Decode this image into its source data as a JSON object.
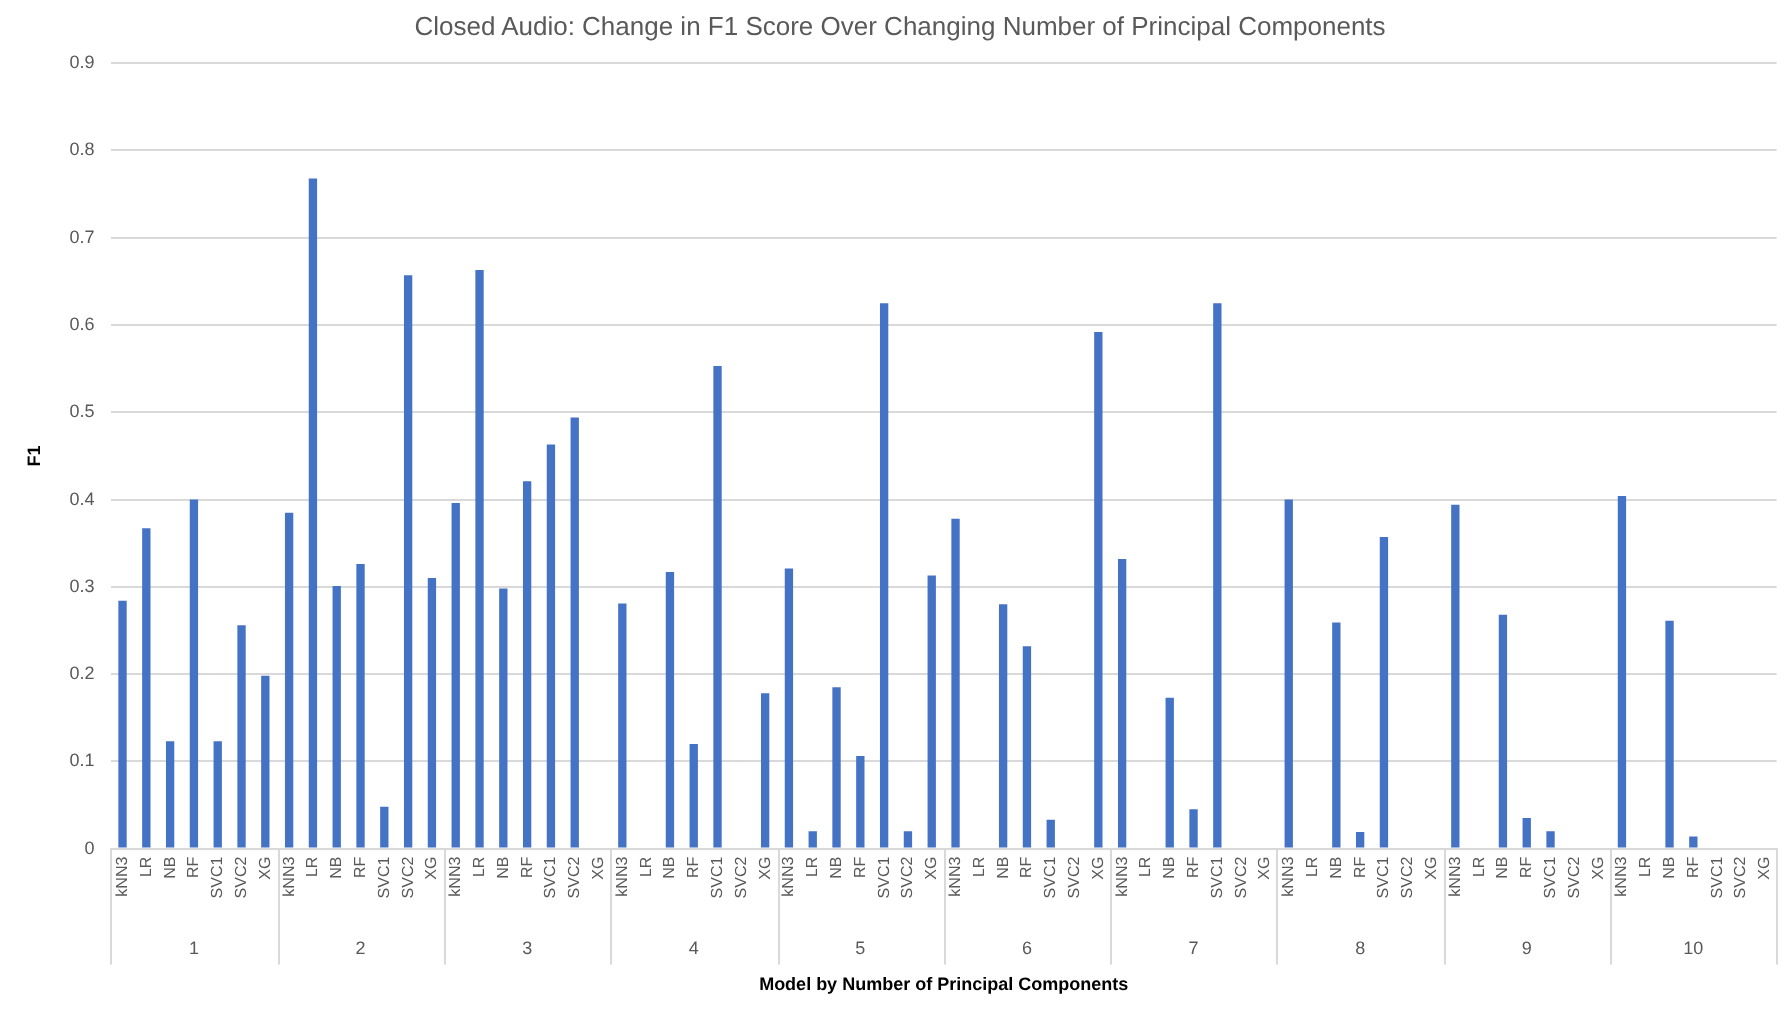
{
  "chart_data": {
    "type": "bar",
    "title": "Closed Audio: Change in F1 Score Over Changing Number of Principal Components",
    "xlabel": "Model by Number of Principal Components",
    "ylabel": "F1",
    "categories": [
      "kNN3",
      "LR",
      "NB",
      "RF",
      "SVC1",
      "SVC2",
      "XG",
      "kNN3",
      "LR",
      "NB",
      "RF",
      "SVC1",
      "SVC2",
      "XG",
      "kNN3",
      "LR",
      "NB",
      "RF",
      "SVC1",
      "SVC2",
      "XG",
      "kNN3",
      "LR",
      "NB",
      "RF",
      "SVC1",
      "SVC2",
      "XG",
      "kNN3",
      "LR",
      "NB",
      "RF",
      "SVC1",
      "SVC2",
      "XG",
      "kNN3",
      "LR",
      "NB",
      "RF",
      "SVC1",
      "SVC2",
      "XG",
      "kNN3",
      "LR",
      "NB",
      "RF",
      "SVC1",
      "SVC2",
      "XG",
      "kNN3",
      "LR",
      "NB",
      "RF",
      "SVC1",
      "SVC2",
      "XG",
      "kNN3",
      "LR",
      "NB",
      "RF",
      "SVC1",
      "SVC2",
      "XG",
      "kNN3",
      "LR",
      "NB",
      "RF",
      "SVC1",
      "SVC2",
      "XG"
    ],
    "values": [
      0.284,
      0.367,
      0.123,
      0.4,
      0.123,
      0.256,
      0.198,
      0.385,
      0.768,
      0.301,
      0.326,
      0.048,
      0.657,
      0.31,
      0.396,
      0.663,
      0.298,
      0.421,
      0.463,
      0.494,
      0,
      0.281,
      0,
      0.317,
      0.12,
      0.553,
      0,
      0.178,
      0.321,
      0.02,
      0.185,
      0.106,
      0.625,
      0.02,
      0.313,
      0.378,
      0,
      0.28,
      0.232,
      0.033,
      0,
      0.592,
      0.332,
      0,
      0.173,
      0.045,
      0.625,
      0,
      0,
      0.4,
      0,
      0.259,
      0.019,
      0.357,
      0,
      0,
      0.394,
      0,
      0.268,
      0.035,
      0.02,
      0,
      0,
      0.404,
      0,
      0.261,
      0.014,
      0,
      0,
      0
    ],
    "annotations": [
      "1",
      "2",
      "3",
      "4",
      "5",
      "6",
      "7",
      "8",
      "9",
      "10"
    ],
    "color": "#4472c4",
    "ylim": [
      0,
      0.9
    ],
    "yticks": [
      0,
      0.1,
      0.2,
      0.3,
      0.4,
      0.5,
      0.6,
      0.7,
      0.8,
      0.9
    ],
    "grid": "y",
    "legend": false
  }
}
